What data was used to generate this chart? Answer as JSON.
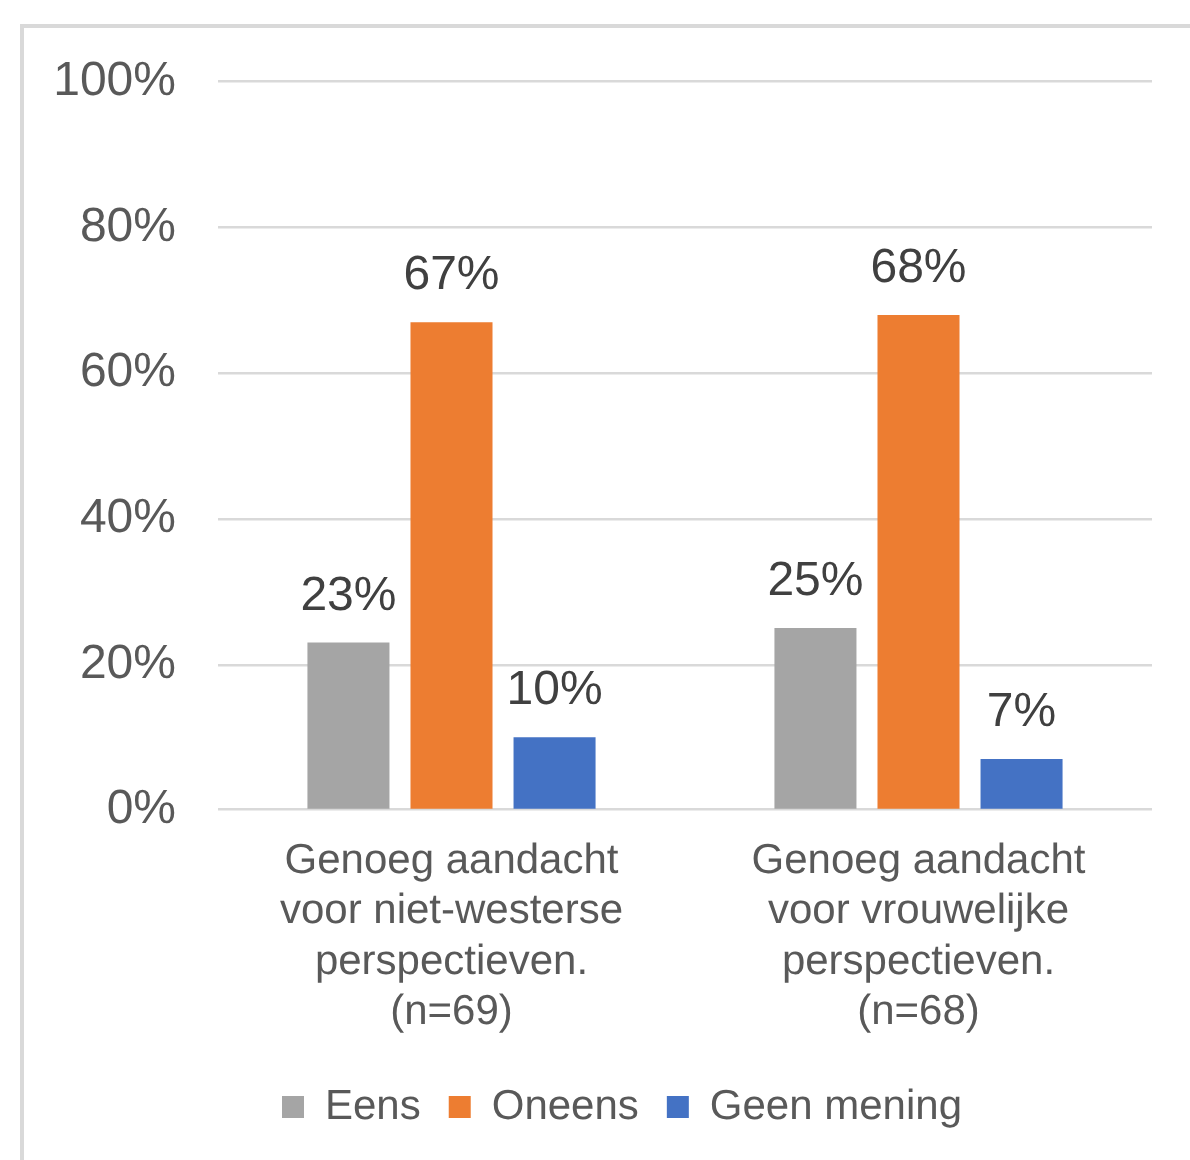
{
  "chart_data": {
    "type": "bar",
    "categories": [
      "Genoeg aandacht voor niet-westerse perspectieven. (n=69)",
      "Genoeg aandacht voor vrouwelijke perspectieven. (n=68)"
    ],
    "series": [
      {
        "name": "Eens",
        "color": "#a5a5a5",
        "values": [
          23,
          25
        ],
        "value_labels": [
          "23%",
          "25%"
        ]
      },
      {
        "name": "Oneens",
        "color": "#ed7d31",
        "values": [
          67,
          68
        ],
        "value_labels": [
          "67%",
          "68%"
        ]
      },
      {
        "name": "Geen mening",
        "color": "#4472c4",
        "values": [
          10,
          7
        ],
        "value_labels": [
          "10%",
          "7%"
        ]
      }
    ],
    "ylim": [
      0,
      100
    ],
    "yticks": [
      {
        "value": 0,
        "label": "0%"
      },
      {
        "value": 20,
        "label": "20%"
      },
      {
        "value": 40,
        "label": "40%"
      },
      {
        "value": 60,
        "label": "60%"
      },
      {
        "value": 80,
        "label": "80%"
      },
      {
        "value": 100,
        "label": "100%"
      }
    ],
    "grid": "y",
    "legend": "bottom"
  }
}
